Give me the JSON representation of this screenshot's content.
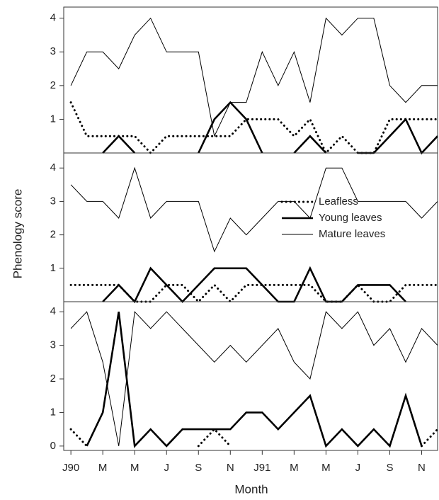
{
  "chart_data": {
    "type": "line",
    "y_label": "Phenology score",
    "x_label": "Month",
    "x": [
      0,
      1,
      2,
      3,
      4,
      5,
      6,
      7,
      8,
      9,
      10,
      11,
      12,
      13,
      14,
      15,
      16,
      17,
      18,
      19,
      20,
      21,
      22,
      23
    ],
    "xlim": [
      -0.45,
      23
    ],
    "xticks": [
      {
        "value": 0,
        "label": "J90"
      },
      {
        "value": 2,
        "label": "M"
      },
      {
        "value": 4,
        "label": "M"
      },
      {
        "value": 6,
        "label": "J"
      },
      {
        "value": 8,
        "label": "S"
      },
      {
        "value": 10,
        "label": "N"
      },
      {
        "value": 12,
        "label": "J91"
      },
      {
        "value": 14,
        "label": "M"
      },
      {
        "value": 16,
        "label": "M"
      },
      {
        "value": 18,
        "label": "J"
      },
      {
        "value": 20,
        "label": "S"
      },
      {
        "value": 22,
        "label": "N"
      }
    ],
    "series_names": [
      "Leafless",
      "Young leaves",
      "Mature leaves"
    ],
    "color": "#000000",
    "legend": "right",
    "legend_panel": 1,
    "panels": [
      {
        "ylim": [
          0,
          4.33
        ],
        "yticks": [
          1,
          2,
          3,
          4
        ],
        "series": [
          {
            "values": [
              1.5,
              0.5,
              0.5,
              0.5,
              0.5,
              0,
              0.5,
              0.5,
              0.5,
              0.5,
              0.5,
              1,
              1,
              1,
              0.5,
              1,
              0,
              0.5,
              0,
              0,
              1,
              1,
              1,
              1
            ]
          },
          {
            "values": [
              null,
              null,
              0,
              0.5,
              0,
              null,
              null,
              null,
              0,
              1,
              1.5,
              1,
              0,
              null,
              0,
              0.5,
              0,
              null,
              0,
              0,
              0.5,
              1,
              0,
              0.5
            ]
          },
          {
            "values": [
              2,
              3,
              3,
              2.5,
              3.5,
              4,
              3,
              3,
              3,
              0.5,
              1.5,
              1.5,
              3,
              2,
              3,
              1.5,
              4,
              3.5,
              4,
              4,
              2,
              1.5,
              2,
              2
            ]
          }
        ]
      },
      {
        "ylim": [
          0,
          4.45
        ],
        "yticks": [
          1,
          2,
          3,
          4
        ],
        "series": [
          {
            "values": [
              0.5,
              0.5,
              0.5,
              0.5,
              0,
              0,
              0.5,
              0.5,
              0,
              0.5,
              0,
              0.5,
              0.5,
              0.5,
              0.5,
              0.5,
              0,
              0,
              0.5,
              0,
              0,
              0.5,
              0.5,
              0.5
            ]
          },
          {
            "values": [
              null,
              null,
              0,
              0.5,
              0,
              1,
              0.5,
              0,
              0.5,
              1,
              1,
              1,
              0.5,
              0,
              0,
              1,
              0,
              0,
              0.5,
              0.5,
              0.5,
              0,
              null,
              null
            ]
          },
          {
            "values": [
              3.5,
              3,
              3,
              2.5,
              4,
              2.5,
              3,
              3,
              3,
              1.5,
              2.5,
              2,
              2.5,
              3,
              3,
              2.5,
              4,
              4,
              3,
              3,
              3,
              3,
              2.5,
              3
            ]
          }
        ]
      },
      {
        "ylim": [
          -0.13,
          4.3
        ],
        "yticks": [
          0,
          1,
          2,
          3,
          4
        ],
        "series": [
          {
            "values": [
              0.5,
              0,
              null,
              null,
              null,
              null,
              null,
              null,
              0,
              0.5,
              0,
              null,
              null,
              null,
              null,
              null,
              null,
              null,
              null,
              null,
              null,
              null,
              0,
              0.5
            ]
          },
          {
            "values": [
              null,
              0,
              1,
              4,
              0,
              0.5,
              0,
              0.5,
              0.5,
              0.5,
              0.5,
              1,
              1,
              0.5,
              1,
              1.5,
              0,
              0.5,
              0,
              0.5,
              0,
              1.5,
              0,
              null
            ]
          },
          {
            "values": [
              3.5,
              4,
              2.5,
              0,
              4,
              3.5,
              4,
              3.5,
              3,
              2.5,
              3,
              2.5,
              3,
              3.5,
              2.5,
              2,
              4,
              3.5,
              4,
              3,
              3.5,
              2.5,
              3.5,
              3
            ]
          }
        ]
      }
    ]
  }
}
